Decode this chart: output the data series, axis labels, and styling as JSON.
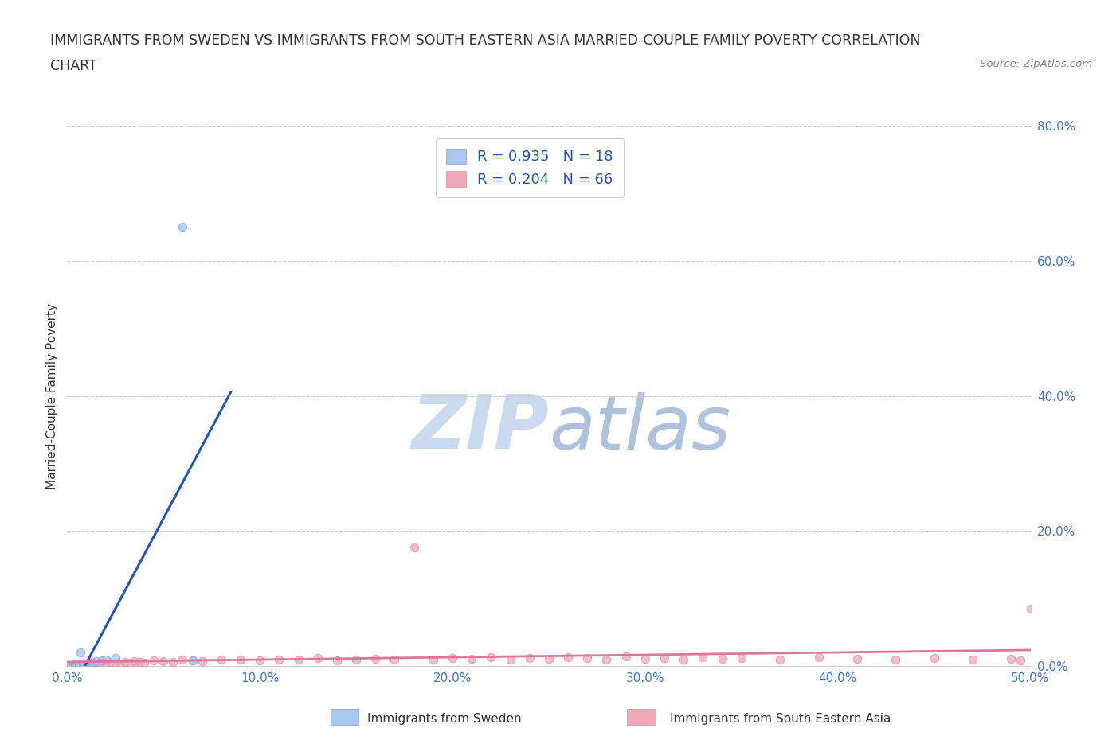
{
  "title_line1": "IMMIGRANTS FROM SWEDEN VS IMMIGRANTS FROM SOUTH EASTERN ASIA MARRIED-COUPLE FAMILY POVERTY CORRELATION",
  "title_line2": "CHART",
  "source": "Source: ZipAtlas.com",
  "ylabel": "Married-Couple Family Poverty",
  "xlim": [
    0.0,
    0.5
  ],
  "ylim": [
    0.0,
    0.8
  ],
  "xticks": [
    0.0,
    0.1,
    0.2,
    0.3,
    0.4,
    0.5
  ],
  "yticks": [
    0.0,
    0.2,
    0.4,
    0.6,
    0.8
  ],
  "xtick_labels": [
    "0.0%",
    "10.0%",
    "20.0%",
    "30.0%",
    "40.0%",
    "50.0%"
  ],
  "ytick_labels": [
    "0.0%",
    "20.0%",
    "40.0%",
    "60.0%",
    "80.0%"
  ],
  "sweden_color": "#a8c8f0",
  "sea_color": "#f0a8b8",
  "sweden_edge_color": "#7ab0e8",
  "sea_edge_color": "#e888a8",
  "sweden_line_color": "#2255bb",
  "sea_line_color": "#dd7799",
  "sweden_R": 0.935,
  "sweden_N": 18,
  "sea_R": 0.204,
  "sea_N": 66,
  "background_color": "#ffffff",
  "grid_color": "#cccccc",
  "watermark": "ZIPatlas",
  "watermark_color": "#c8d8f0",
  "sweden_x": [
    0.003,
    0.004,
    0.005,
    0.006,
    0.007,
    0.008,
    0.009,
    0.01,
    0.011,
    0.012,
    0.013,
    0.014,
    0.015,
    0.018,
    0.02,
    0.025,
    0.06,
    0.065
  ],
  "sweden_y": [
    0.001,
    0.001,
    0.002,
    0.002,
    0.02,
    0.003,
    0.003,
    0.004,
    0.004,
    0.005,
    0.005,
    0.006,
    0.007,
    0.008,
    0.01,
    0.012,
    0.65,
    0.008
  ],
  "sea_x": [
    0.002,
    0.003,
    0.004,
    0.005,
    0.006,
    0.007,
    0.008,
    0.009,
    0.01,
    0.011,
    0.012,
    0.013,
    0.015,
    0.017,
    0.02,
    0.022,
    0.025,
    0.028,
    0.03,
    0.033,
    0.035,
    0.038,
    0.04,
    0.045,
    0.05,
    0.055,
    0.06,
    0.065,
    0.07,
    0.08,
    0.09,
    0.1,
    0.11,
    0.12,
    0.13,
    0.14,
    0.15,
    0.16,
    0.17,
    0.18,
    0.19,
    0.2,
    0.21,
    0.22,
    0.23,
    0.24,
    0.25,
    0.26,
    0.27,
    0.28,
    0.29,
    0.3,
    0.31,
    0.32,
    0.33,
    0.34,
    0.35,
    0.37,
    0.39,
    0.41,
    0.43,
    0.45,
    0.47,
    0.49,
    0.495,
    0.5
  ],
  "sea_y": [
    0.001,
    0.002,
    0.001,
    0.003,
    0.002,
    0.001,
    0.003,
    0.002,
    0.004,
    0.003,
    0.005,
    0.003,
    0.004,
    0.005,
    0.003,
    0.006,
    0.005,
    0.004,
    0.006,
    0.005,
    0.007,
    0.006,
    0.005,
    0.008,
    0.007,
    0.006,
    0.009,
    0.008,
    0.007,
    0.01,
    0.009,
    0.008,
    0.01,
    0.009,
    0.012,
    0.008,
    0.01,
    0.011,
    0.009,
    0.175,
    0.01,
    0.012,
    0.011,
    0.013,
    0.01,
    0.012,
    0.011,
    0.013,
    0.012,
    0.01,
    0.014,
    0.011,
    0.012,
    0.01,
    0.013,
    0.011,
    0.012,
    0.01,
    0.013,
    0.011,
    0.01,
    0.012,
    0.009,
    0.011,
    0.008,
    0.085
  ]
}
